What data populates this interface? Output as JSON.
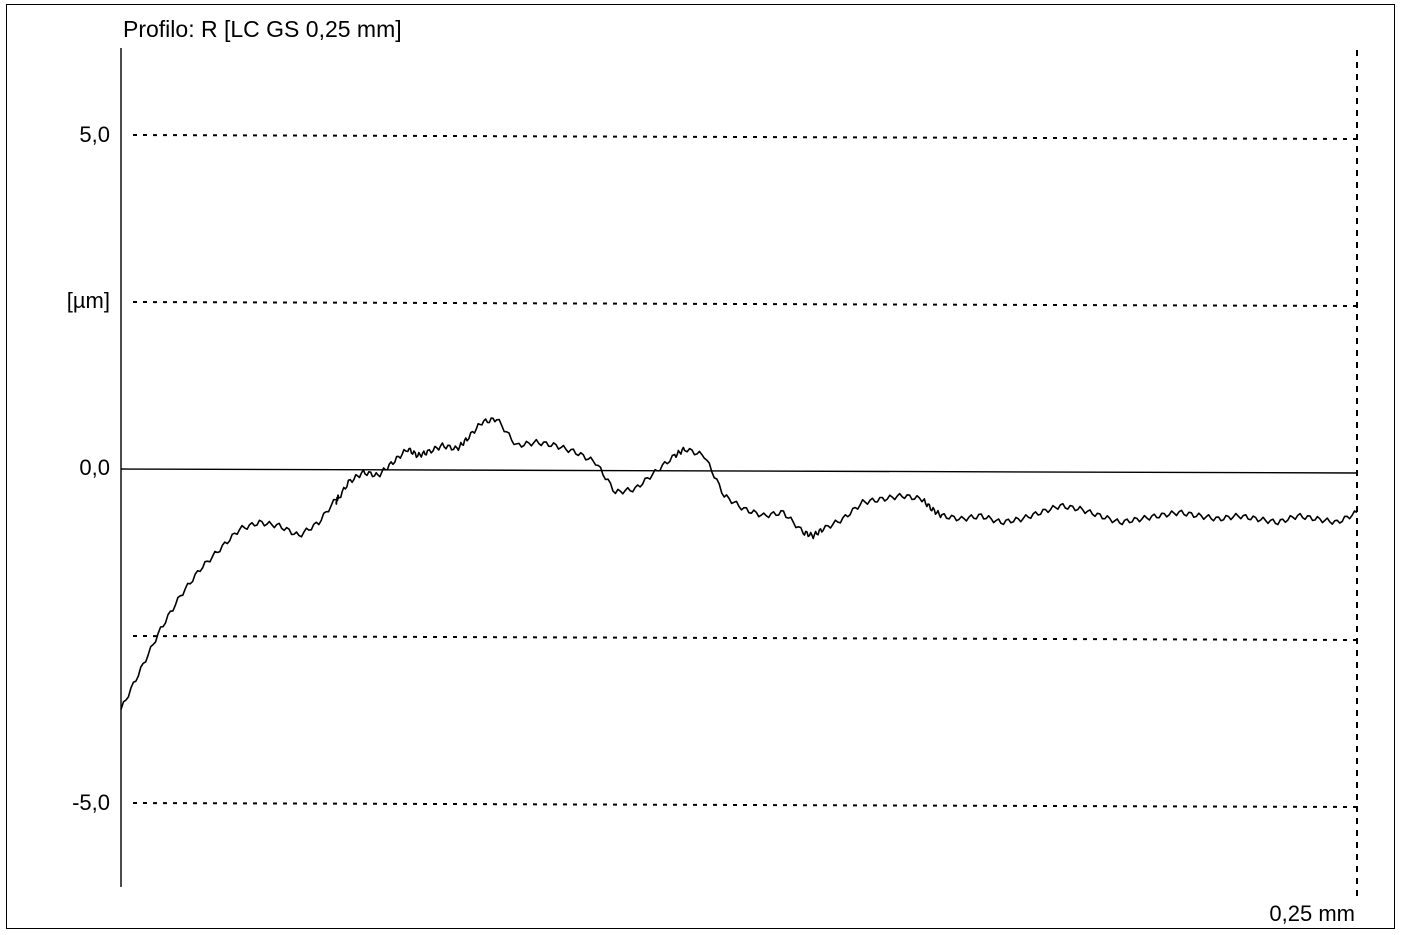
{
  "chart_data": {
    "type": "line",
    "title": "Profilo: R [LC GS 0,25 mm]",
    "ylabel": "[µm]",
    "x_end_label": "0,25 mm",
    "ylim": [
      -7.5,
      7.5
    ],
    "xlim": [
      0,
      0.25
    ],
    "yticks": [
      {
        "value": 5.0,
        "label": "5,0"
      },
      {
        "value": 2.5,
        "label": ""
      },
      {
        "value": 0.0,
        "label": "0,0"
      },
      {
        "value": -2.5,
        "label": ""
      },
      {
        "value": -5.0,
        "label": "-5,0"
      }
    ],
    "grid": true,
    "series": [
      {
        "x": [
          0,
          0.004,
          0.008,
          0.012,
          0.016,
          0.02,
          0.024,
          0.028,
          0.032,
          0.036,
          0.04,
          0.044,
          0.0435,
          0.046,
          0.049,
          0.052,
          0.055,
          0.058,
          0.06,
          0.062,
          0.065,
          0.068,
          0.07,
          0.073,
          0.076,
          0.08,
          0.084,
          0.088,
          0.092,
          0.096,
          0.1,
          0.104,
          0.108,
          0.112,
          0.114,
          0.118,
          0.122,
          0.126,
          0.13,
          0.134,
          0.138,
          0.14,
          0.142,
          0.146,
          0.15,
          0.154,
          0.158,
          0.162,
          0.164,
          0.166,
          0.17,
          0.174,
          0.178,
          0.182,
          0.186,
          0.19,
          0.194,
          0.198,
          0.202,
          0.206,
          0.21,
          0.214,
          0.218,
          0.222,
          0.226,
          0.23,
          0.234,
          0.238,
          0.242,
          0.246,
          0.25
        ],
        "y": [
          -3.6,
          -3.0,
          -2.4,
          -1.9,
          -1.5,
          -1.2,
          -0.9,
          -0.8,
          -0.85,
          -1.0,
          -0.8,
          -0.4,
          -0.5,
          -0.2,
          -0.05,
          -0.1,
          0.1,
          0.3,
          0.2,
          0.25,
          0.35,
          0.3,
          0.45,
          0.7,
          0.75,
          0.35,
          0.4,
          0.35,
          0.25,
          0.1,
          -0.35,
          -0.3,
          -0.05,
          0.2,
          0.3,
          0.2,
          -0.4,
          -0.6,
          -0.7,
          -0.65,
          -0.95,
          -1.0,
          -0.9,
          -0.75,
          -0.5,
          -0.45,
          -0.4,
          -0.45,
          -0.6,
          -0.7,
          -0.75,
          -0.7,
          -0.8,
          -0.75,
          -0.65,
          -0.55,
          -0.6,
          -0.7,
          -0.8,
          -0.75,
          -0.7,
          -0.65,
          -0.7,
          -0.75,
          -0.7,
          -0.75,
          -0.8,
          -0.7,
          -0.75,
          -0.8,
          -0.65
        ]
      }
    ]
  }
}
